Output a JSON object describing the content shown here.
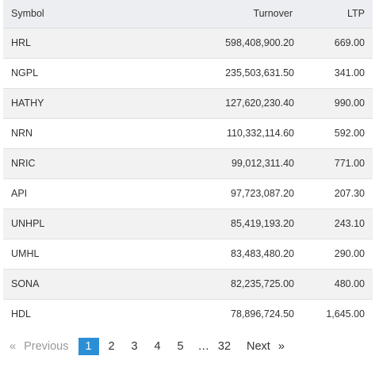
{
  "table": {
    "headers": {
      "symbol": "Symbol",
      "turnover": "Turnover",
      "ltp": "LTP"
    },
    "rows": [
      {
        "symbol": "HRL",
        "turnover": "598,408,900.20",
        "ltp": "669.00"
      },
      {
        "symbol": "NGPL",
        "turnover": "235,503,631.50",
        "ltp": "341.00"
      },
      {
        "symbol": "HATHY",
        "turnover": "127,620,230.40",
        "ltp": "990.00"
      },
      {
        "symbol": "NRN",
        "turnover": "110,332,114.60",
        "ltp": "592.00"
      },
      {
        "symbol": "NRIC",
        "turnover": "99,012,311.40",
        "ltp": "771.00"
      },
      {
        "symbol": "API",
        "turnover": "97,723,087.20",
        "ltp": "207.30"
      },
      {
        "symbol": "UNHPL",
        "turnover": "85,419,193.20",
        "ltp": "243.10"
      },
      {
        "symbol": "UMHL",
        "turnover": "83,483,480.20",
        "ltp": "290.00"
      },
      {
        "symbol": "SONA",
        "turnover": "82,235,725.00",
        "ltp": "480.00"
      },
      {
        "symbol": "HDL",
        "turnover": "78,896,724.50",
        "ltp": "1,645.00"
      }
    ]
  },
  "pagination": {
    "prev_arrow": "«",
    "prev_label": "Previous",
    "pages": [
      "1",
      "2",
      "3",
      "4",
      "5"
    ],
    "active_page": "1",
    "ellipsis": "…",
    "last_page": "32",
    "next_label": "Next",
    "next_arrow": "»",
    "active_color": "#2b8fd6"
  }
}
